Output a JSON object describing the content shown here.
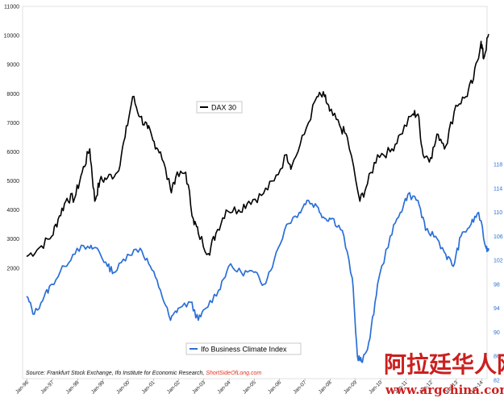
{
  "chart_data": {
    "type": "line",
    "title": "",
    "xlabel": "",
    "ylabel": "",
    "x_ticks": [
      "Jan-96",
      "Jan-97",
      "Jan-98",
      "Jan-99",
      "Jan-00",
      "Jan-01",
      "Jan-02",
      "Jan-03",
      "Jan-04",
      "Jan-05",
      "Jan-06",
      "Jan-07",
      "Jan-08",
      "Jan-09",
      "Jan-10",
      "Jan-11",
      "Jan-12",
      "Jan-13",
      "Jan-14"
    ],
    "xlim": [
      1996.0,
      2014.3
    ],
    "left_axis": {
      "ylim": [
        0,
        11000
      ],
      "ticks": [
        2000,
        3000,
        4000,
        5000,
        6000,
        7000,
        8000,
        9000,
        10000,
        11000
      ]
    },
    "right_axis": {
      "ylim": [
        82,
        126
      ],
      "ticks": [
        82,
        86,
        90,
        94,
        98,
        102,
        106,
        110,
        114,
        118
      ]
    },
    "legend": [
      "DAX 30",
      "Ifo Business Climate Index"
    ],
    "series": [
      {
        "name": "DAX 30",
        "axis": "left",
        "color": "#000000",
        "x": [
          1996.0,
          1996.5,
          1997.0,
          1997.3,
          1997.6,
          1997.9,
          1998.2,
          1998.5,
          1998.7,
          1998.9,
          1999.2,
          1999.6,
          1999.9,
          2000.2,
          2000.5,
          2000.8,
          2001.0,
          2001.3,
          2001.7,
          2001.9,
          2002.3,
          2002.6,
          2002.8,
          2003.2,
          2003.5,
          2003.9,
          2004.4,
          2004.8,
          2005.3,
          2005.8,
          2006.3,
          2006.5,
          2007.0,
          2007.5,
          2007.8,
          2008.0,
          2008.4,
          2008.7,
          2009.2,
          2009.5,
          2009.9,
          2010.4,
          2010.8,
          2011.3,
          2011.5,
          2011.7,
          2012.0,
          2012.3,
          2012.6,
          2013.0,
          2013.4,
          2013.7,
          2014.0,
          2014.1,
          2014.3
        ],
        "values": [
          2400,
          2700,
          3100,
          3800,
          4400,
          4400,
          5300,
          6100,
          4300,
          5000,
          5100,
          5300,
          6500,
          7900,
          7200,
          6800,
          6400,
          6000,
          4700,
          5100,
          5300,
          3700,
          3200,
          2500,
          3200,
          4000,
          4000,
          4300,
          4500,
          5000,
          5900,
          5500,
          6600,
          7900,
          7900,
          7400,
          6900,
          6500,
          4300,
          4900,
          5900,
          6000,
          6600,
          7300,
          7300,
          5900,
          5800,
          6600,
          6200,
          7600,
          7900,
          8500,
          9800,
          9200,
          10050
        ]
      },
      {
        "name": "Ifo Business Climate Index",
        "axis": "right",
        "color": "#2a6fd6",
        "x": [
          1996.0,
          1996.3,
          1996.7,
          1997.0,
          1997.5,
          1998.0,
          1998.5,
          1998.8,
          1999.2,
          1999.5,
          2000.0,
          2000.5,
          2000.9,
          2001.3,
          2001.7,
          2002.0,
          2002.5,
          2002.8,
          2003.1,
          2003.6,
          2004.0,
          2004.5,
          2005.0,
          2005.4,
          2005.8,
          2006.3,
          2006.8,
          2007.1,
          2007.5,
          2007.8,
          2008.1,
          2008.5,
          2008.9,
          2009.1,
          2009.3,
          2009.6,
          2009.9,
          2010.4,
          2010.8,
          2011.1,
          2011.5,
          2011.8,
          2012.2,
          2012.6,
          2012.9,
          2013.2,
          2013.6,
          2013.9,
          2014.2,
          2014.3
        ],
        "values": [
          96,
          93,
          96,
          98,
          101,
          104,
          104,
          104,
          101,
          100,
          103,
          104,
          101,
          97,
          92,
          94,
          95,
          92,
          94,
          97,
          101,
          100,
          100,
          98,
          102,
          108,
          110,
          112,
          111,
          109,
          109,
          107,
          99,
          86,
          85,
          89,
          98,
          106,
          110,
          113,
          112,
          107,
          106,
          103,
          101,
          106,
          108,
          110,
          104,
          104
        ]
      }
    ]
  },
  "source_prefix": "Source: Frankfurt Stock Exchange, Ifo Institute for Economic Research, ",
  "source_brand": "ShortSideOfLong.com",
  "watermark_cn": "阿拉廷华人网",
  "watermark_url": "www.argchina.com"
}
